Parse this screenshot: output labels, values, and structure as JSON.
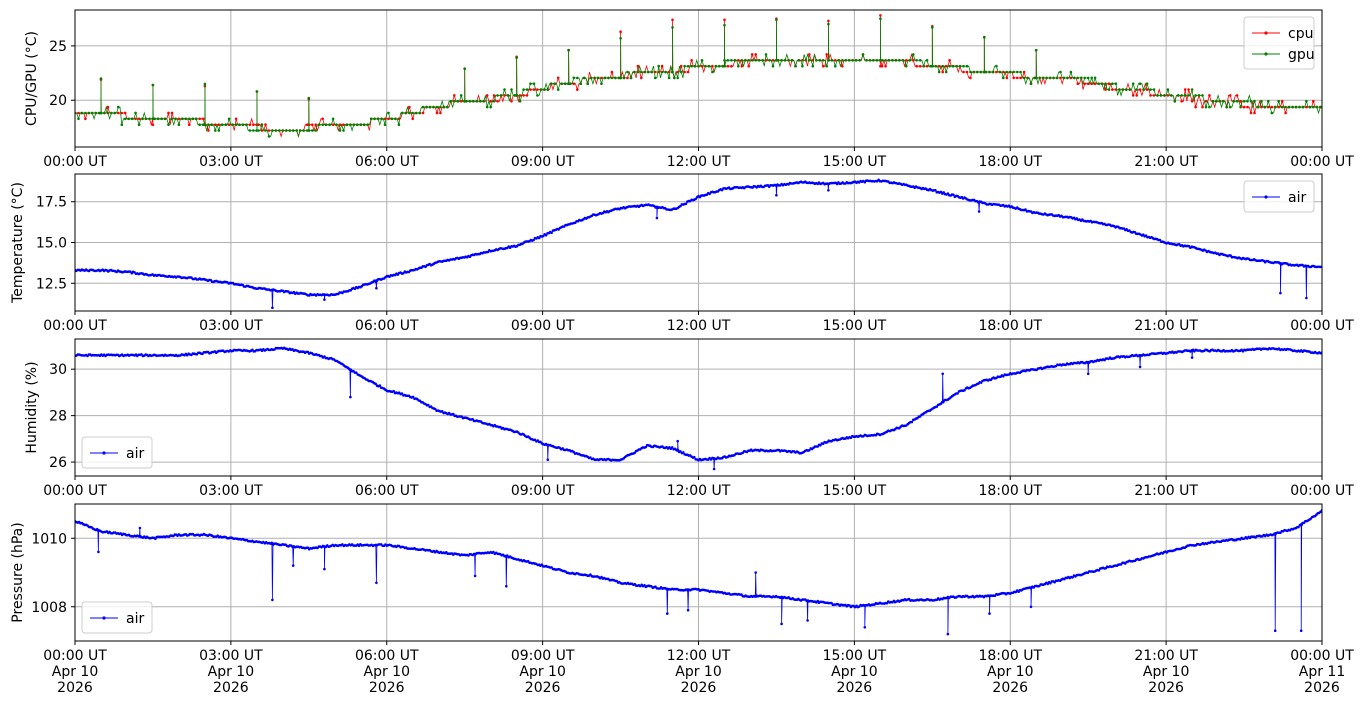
{
  "colors": {
    "cpu": "#ff0000",
    "gpu": "#008000",
    "air": "#0000ff",
    "grid": "#b0b0b0"
  },
  "chart_data": [
    {
      "type": "line",
      "ylabel": "CPU/GPU (°C)",
      "x_tick_labels": [
        "00:00 UT",
        "03:00 UT",
        "06:00 UT",
        "09:00 UT",
        "12:00 UT",
        "15:00 UT",
        "18:00 UT",
        "21:00 UT",
        "00:00 UT"
      ],
      "x_tick_hours": [
        0,
        3,
        6,
        9,
        12,
        15,
        18,
        21,
        24
      ],
      "xlim_hours": [
        0,
        24
      ],
      "ylim": [
        15.7,
        28.3
      ],
      "y_ticks": [
        20,
        25
      ],
      "y_tick_labels": [
        "20",
        "25"
      ],
      "grid": true,
      "legend": "top-right",
      "series": [
        {
          "name": "cpu",
          "color": "#ff0000",
          "baseline": {
            "x_hours": [
              0,
              0.8,
              1.0,
              1.5,
              2.0,
              2.5,
              3.0,
              3.5,
              4.0,
              4.5,
              5.0,
              5.5,
              6.0,
              6.5,
              7.0,
              7.5,
              8.0,
              8.5,
              9.0,
              9.5,
              10.0,
              10.5,
              11.0,
              11.5,
              12.0,
              12.5,
              13.0,
              13.5,
              14.0,
              14.5,
              15.0,
              15.5,
              16.0,
              16.5,
              17.0,
              17.5,
              18.0,
              18.5,
              19.0,
              19.5,
              20.0,
              20.5,
              21.0,
              21.5,
              22.0,
              22.5,
              23.0,
              23.5,
              24.0
            ],
            "values": [
              18.8,
              18.8,
              18.5,
              18.5,
              18.5,
              18.0,
              17.8,
              17.5,
              17.4,
              17.5,
              17.8,
              17.9,
              18.2,
              18.8,
              19.5,
              19.8,
              20.0,
              20.5,
              21.0,
              21.6,
              22.0,
              22.2,
              22.4,
              22.6,
              23.0,
              23.3,
              23.6,
              23.6,
              23.7,
              23.7,
              23.8,
              23.7,
              23.5,
              23.2,
              22.9,
              22.6,
              22.4,
              22.0,
              21.9,
              21.7,
              21.2,
              20.8,
              20.5,
              20.2,
              19.9,
              19.6,
              19.4,
              19.2,
              19.1
            ]
          },
          "spikes": [
            {
              "x_hour": 0.5,
              "value": 21.9
            },
            {
              "x_hour": 1.5,
              "value": 21.4
            },
            {
              "x_hour": 2.5,
              "value": 21.3
            },
            {
              "x_hour": 3.5,
              "value": 20.8
            },
            {
              "x_hour": 4.5,
              "value": 20.1
            },
            {
              "x_hour": 7.5,
              "value": 22.9
            },
            {
              "x_hour": 8.5,
              "value": 24.0
            },
            {
              "x_hour": 9.5,
              "value": 24.6
            },
            {
              "x_hour": 10.5,
              "value": 26.3
            },
            {
              "x_hour": 11.5,
              "value": 27.4
            },
            {
              "x_hour": 12.5,
              "value": 27.4
            },
            {
              "x_hour": 13.5,
              "value": 27.5
            },
            {
              "x_hour": 14.5,
              "value": 27.3
            },
            {
              "x_hour": 15.5,
              "value": 27.8
            },
            {
              "x_hour": 16.5,
              "value": 26.8
            },
            {
              "x_hour": 17.5,
              "value": 25.8
            },
            {
              "x_hour": 18.5,
              "value": 24.6
            }
          ]
        },
        {
          "name": "gpu",
          "color": "#008000",
          "baseline": {
            "x_hours": [
              0,
              0.8,
              1.0,
              1.5,
              2.0,
              2.5,
              3.0,
              3.5,
              4.0,
              4.5,
              5.0,
              5.5,
              6.0,
              6.5,
              7.0,
              7.5,
              8.0,
              8.5,
              9.0,
              9.5,
              10.0,
              10.5,
              11.0,
              11.5,
              12.0,
              12.5,
              13.0,
              13.5,
              14.0,
              14.5,
              15.0,
              15.5,
              16.0,
              16.5,
              17.0,
              17.5,
              18.0,
              18.5,
              19.0,
              19.5,
              20.0,
              20.5,
              21.0,
              21.5,
              22.0,
              22.5,
              23.0,
              23.5,
              24.0
            ],
            "values": [
              18.7,
              18.7,
              18.4,
              18.4,
              18.3,
              17.9,
              17.7,
              17.4,
              17.3,
              17.4,
              17.7,
              17.9,
              18.2,
              18.9,
              19.5,
              19.9,
              20.1,
              20.6,
              21.1,
              21.7,
              22.1,
              22.3,
              22.5,
              22.7,
              23.1,
              23.4,
              23.7,
              23.7,
              23.8,
              23.8,
              23.8,
              23.8,
              23.6,
              23.3,
              23.0,
              22.7,
              22.5,
              22.1,
              22.0,
              21.8,
              21.3,
              20.9,
              20.6,
              20.3,
              20.0,
              19.7,
              19.5,
              19.3,
              19.2
            ]
          },
          "spikes": [
            {
              "x_hour": 0.5,
              "value": 22.0
            },
            {
              "x_hour": 1.5,
              "value": 21.4
            },
            {
              "x_hour": 2.5,
              "value": 21.5
            },
            {
              "x_hour": 3.5,
              "value": 20.8
            },
            {
              "x_hour": 4.5,
              "value": 20.2
            },
            {
              "x_hour": 7.5,
              "value": 22.9
            },
            {
              "x_hour": 8.5,
              "value": 23.9
            },
            {
              "x_hour": 9.5,
              "value": 24.6
            },
            {
              "x_hour": 10.5,
              "value": 25.7
            },
            {
              "x_hour": 11.5,
              "value": 26.7
            },
            {
              "x_hour": 12.5,
              "value": 26.9
            },
            {
              "x_hour": 13.5,
              "value": 27.4
            },
            {
              "x_hour": 14.5,
              "value": 27.0
            },
            {
              "x_hour": 15.5,
              "value": 27.5
            },
            {
              "x_hour": 16.5,
              "value": 26.7
            },
            {
              "x_hour": 17.5,
              "value": 25.8
            },
            {
              "x_hour": 18.5,
              "value": 24.6
            }
          ]
        }
      ]
    },
    {
      "type": "line",
      "ylabel": "Temperature (°C)",
      "x_tick_labels": [
        "00:00 UT",
        "03:00 UT",
        "06:00 UT",
        "09:00 UT",
        "12:00 UT",
        "15:00 UT",
        "18:00 UT",
        "21:00 UT",
        "00:00 UT"
      ],
      "x_tick_hours": [
        0,
        3,
        6,
        9,
        12,
        15,
        18,
        21,
        24
      ],
      "xlim_hours": [
        0,
        24
      ],
      "ylim": [
        10.8,
        19.2
      ],
      "y_ticks": [
        12.5,
        15.0,
        17.5
      ],
      "y_tick_labels": [
        "12.5",
        "15.0",
        "17.5"
      ],
      "grid": true,
      "legend": "top-right",
      "series": [
        {
          "name": "air",
          "color": "#0000ff",
          "x_hours": [
            0,
            0.5,
            1,
            1.5,
            2,
            2.5,
            3,
            3.5,
            4,
            4.5,
            5,
            5.5,
            6,
            6.5,
            7,
            7.5,
            8,
            8.5,
            9,
            9.5,
            10,
            10.5,
            11,
            11.5,
            12,
            12.5,
            13,
            13.5,
            14,
            14.5,
            15,
            15.5,
            16,
            16.5,
            17,
            17.5,
            18,
            18.5,
            19,
            19.5,
            20,
            20.5,
            21,
            21.5,
            22,
            22.5,
            23,
            23.5,
            24
          ],
          "values": [
            13.3,
            13.3,
            13.2,
            13.0,
            12.9,
            12.7,
            12.5,
            12.2,
            12.0,
            11.8,
            11.8,
            12.3,
            12.9,
            13.3,
            13.8,
            14.1,
            14.5,
            14.8,
            15.4,
            16.1,
            16.7,
            17.1,
            17.3,
            17.0,
            17.8,
            18.3,
            18.4,
            18.5,
            18.7,
            18.6,
            18.7,
            18.8,
            18.5,
            18.2,
            17.8,
            17.4,
            17.2,
            16.8,
            16.6,
            16.3,
            16.0,
            15.5,
            15.0,
            14.7,
            14.3,
            14.0,
            13.8,
            13.6,
            13.5
          ],
          "outliers": [
            {
              "x_hour": 3.8,
              "value": 11.0
            },
            {
              "x_hour": 4.8,
              "value": 11.5
            },
            {
              "x_hour": 5.8,
              "value": 12.2
            },
            {
              "x_hour": 11.2,
              "value": 16.5
            },
            {
              "x_hour": 13.5,
              "value": 17.9
            },
            {
              "x_hour": 14.5,
              "value": 18.2
            },
            {
              "x_hour": 17.4,
              "value": 16.9
            },
            {
              "x_hour": 23.2,
              "value": 11.9
            },
            {
              "x_hour": 23.7,
              "value": 11.6
            }
          ]
        }
      ]
    },
    {
      "type": "line",
      "ylabel": "Humidity (%)",
      "x_tick_labels": [
        "00:00 UT",
        "03:00 UT",
        "06:00 UT",
        "09:00 UT",
        "12:00 UT",
        "15:00 UT",
        "18:00 UT",
        "21:00 UT",
        "00:00 UT"
      ],
      "x_tick_hours": [
        0,
        3,
        6,
        9,
        12,
        15,
        18,
        21,
        24
      ],
      "xlim_hours": [
        0,
        24
      ],
      "ylim": [
        25.4,
        31.3
      ],
      "y_ticks": [
        26,
        28,
        30
      ],
      "y_tick_labels": [
        "26",
        "28",
        "30"
      ],
      "grid": true,
      "legend": "bottom-left",
      "series": [
        {
          "name": "air",
          "color": "#0000ff",
          "x_hours": [
            0,
            0.5,
            1,
            1.5,
            2,
            2.5,
            3,
            3.5,
            4,
            4.5,
            5,
            5.5,
            6,
            6.5,
            7,
            7.5,
            8,
            8.5,
            9,
            9.5,
            10,
            10.5,
            11,
            11.5,
            12,
            12.5,
            13,
            13.5,
            14,
            14.5,
            15,
            15.5,
            16,
            16.5,
            17,
            17.5,
            18,
            18.5,
            19,
            19.5,
            20,
            20.5,
            21,
            21.5,
            22,
            22.5,
            23,
            23.5,
            24
          ],
          "values": [
            30.6,
            30.6,
            30.6,
            30.6,
            30.6,
            30.7,
            30.8,
            30.8,
            30.9,
            30.7,
            30.4,
            29.7,
            29.1,
            28.8,
            28.2,
            27.9,
            27.6,
            27.3,
            26.8,
            26.5,
            26.1,
            26.1,
            26.7,
            26.6,
            26.1,
            26.2,
            26.5,
            26.5,
            26.4,
            26.9,
            27.1,
            27.2,
            27.6,
            28.3,
            29.0,
            29.5,
            29.8,
            30.0,
            30.2,
            30.3,
            30.5,
            30.6,
            30.7,
            30.8,
            30.8,
            30.8,
            30.9,
            30.8,
            30.7
          ],
          "outliers": [
            {
              "x_hour": 5.3,
              "value": 28.8
            },
            {
              "x_hour": 9.1,
              "value": 26.1
            },
            {
              "x_hour": 11.6,
              "value": 26.9
            },
            {
              "x_hour": 12.3,
              "value": 25.7
            },
            {
              "x_hour": 16.7,
              "value": 29.8
            },
            {
              "x_hour": 19.5,
              "value": 29.8
            },
            {
              "x_hour": 20.5,
              "value": 30.1
            },
            {
              "x_hour": 21.5,
              "value": 30.5
            }
          ]
        }
      ]
    },
    {
      "type": "line",
      "ylabel": "Pressure (hPa)",
      "x_tick_labels": [
        "00:00 UT\nApr 10\n2026",
        "03:00 UT\nApr 10\n2026",
        "06:00 UT\nApr 10\n2026",
        "09:00 UT\nApr 10\n2026",
        "12:00 UT\nApr 10\n2026",
        "15:00 UT\nApr 10\n2026",
        "18:00 UT\nApr 10\n2026",
        "21:00 UT\nApr 10\n2026",
        "00:00 UT\nApr 11\n2026"
      ],
      "x_tick_hours": [
        0,
        3,
        6,
        9,
        12,
        15,
        18,
        21,
        24
      ],
      "xlim_hours": [
        0,
        24
      ],
      "ylim": [
        1007.0,
        1011.0
      ],
      "y_ticks": [
        1008,
        1010
      ],
      "y_tick_labels": [
        "1008",
        "1010"
      ],
      "grid": true,
      "legend": "bottom-left",
      "series": [
        {
          "name": "air",
          "color": "#0000ff",
          "x_hours": [
            0,
            0.5,
            1,
            1.5,
            2,
            2.5,
            3,
            3.5,
            4,
            4.5,
            5,
            5.5,
            6,
            6.5,
            7,
            7.5,
            8,
            8.5,
            9,
            9.5,
            10,
            10.5,
            11,
            11.5,
            12,
            12.5,
            13,
            13.5,
            14,
            14.5,
            15,
            15.5,
            16,
            16.5,
            17,
            17.5,
            18,
            18.5,
            19,
            19.5,
            20,
            20.5,
            21,
            21.5,
            22,
            22.5,
            23,
            23.5,
            24
          ],
          "values": [
            1010.5,
            1010.2,
            1010.1,
            1010.0,
            1010.1,
            1010.1,
            1010.0,
            1009.9,
            1009.8,
            1009.7,
            1009.8,
            1009.8,
            1009.8,
            1009.7,
            1009.6,
            1009.5,
            1009.6,
            1009.4,
            1009.2,
            1009.0,
            1008.9,
            1008.7,
            1008.6,
            1008.5,
            1008.5,
            1008.4,
            1008.3,
            1008.3,
            1008.2,
            1008.1,
            1008.0,
            1008.1,
            1008.2,
            1008.2,
            1008.3,
            1008.3,
            1008.4,
            1008.6,
            1008.8,
            1009.0,
            1009.2,
            1009.4,
            1009.6,
            1009.8,
            1009.9,
            1010.0,
            1010.1,
            1010.3,
            1010.8
          ],
          "outliers": [
            {
              "x_hour": 0.45,
              "value": 1009.6
            },
            {
              "x_hour": 1.25,
              "value": 1010.3
            },
            {
              "x_hour": 3.8,
              "value": 1008.2
            },
            {
              "x_hour": 4.2,
              "value": 1009.2
            },
            {
              "x_hour": 4.8,
              "value": 1009.1
            },
            {
              "x_hour": 5.8,
              "value": 1008.7
            },
            {
              "x_hour": 7.7,
              "value": 1008.9
            },
            {
              "x_hour": 8.3,
              "value": 1008.6
            },
            {
              "x_hour": 11.4,
              "value": 1007.8
            },
            {
              "x_hour": 11.8,
              "value": 1007.9
            },
            {
              "x_hour": 13.1,
              "value": 1009.0
            },
            {
              "x_hour": 13.6,
              "value": 1007.5
            },
            {
              "x_hour": 14.1,
              "value": 1007.6
            },
            {
              "x_hour": 15.2,
              "value": 1007.4
            },
            {
              "x_hour": 16.8,
              "value": 1007.2
            },
            {
              "x_hour": 17.6,
              "value": 1007.8
            },
            {
              "x_hour": 18.4,
              "value": 1008.0
            },
            {
              "x_hour": 23.1,
              "value": 1007.3
            },
            {
              "x_hour": 23.6,
              "value": 1007.3
            }
          ]
        }
      ]
    }
  ]
}
